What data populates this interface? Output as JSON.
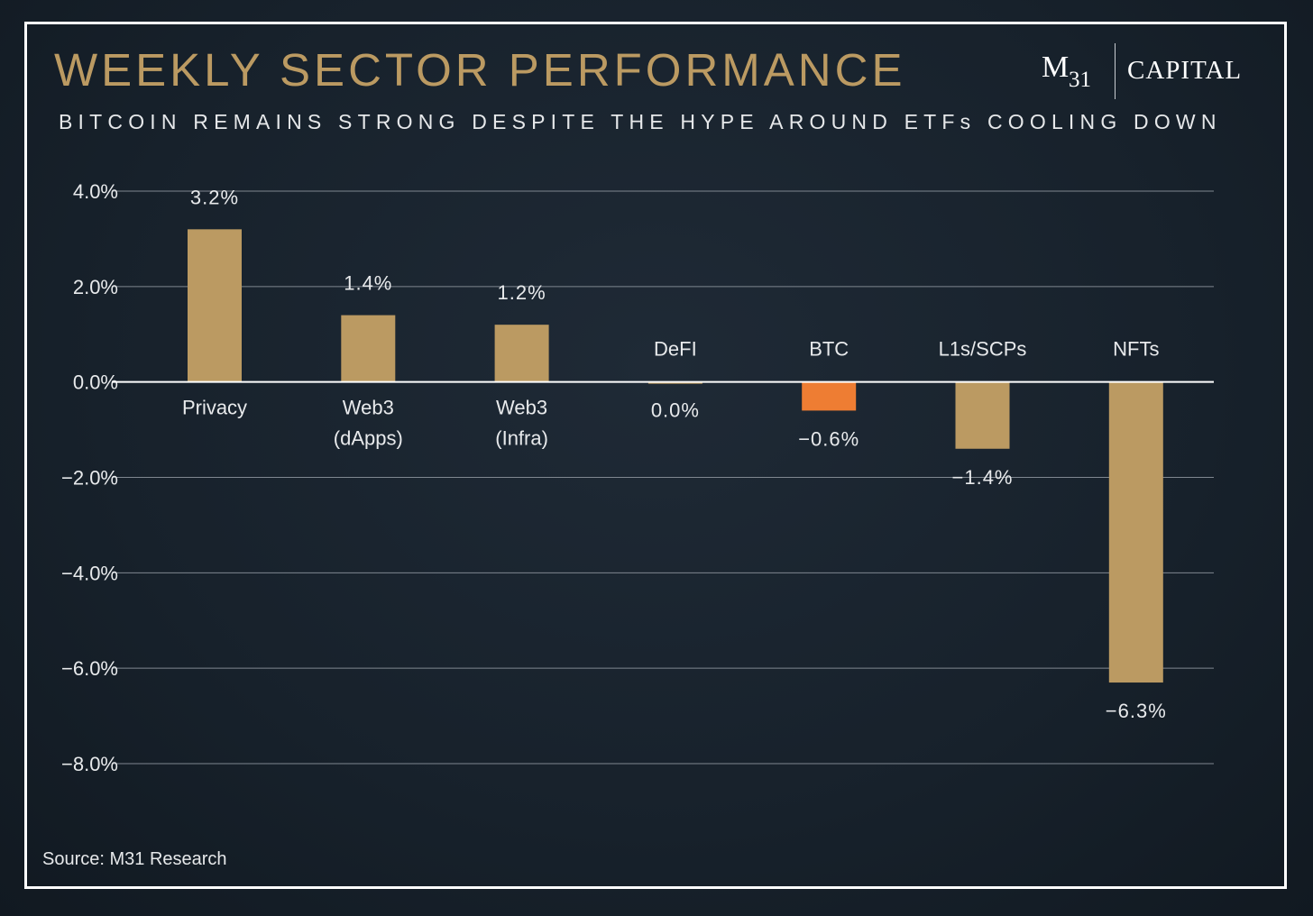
{
  "title": "WEEKLY SECTOR PERFORMANCE",
  "subtitle": "BITCOIN REMAINS STRONG DESPITE THE HYPE AROUND ETFs COOLING DOWN",
  "logo": {
    "m": "M",
    "sub": "31",
    "name": "CAPITAL"
  },
  "source": "Source: M31 Research",
  "colors": {
    "background": "#17212b",
    "title": "#bb9a62",
    "bar": "#bb9a62",
    "highlight_bar": "#ee7d33",
    "text": "#e8eaec",
    "gridline": "#7f8790",
    "zero_line": "#ffffff"
  },
  "chart_data": {
    "type": "bar",
    "categories": [
      [
        "Privacy"
      ],
      [
        "Web3",
        "(dApps)"
      ],
      [
        "Web3",
        "(Infra)"
      ],
      [
        "DeFI"
      ],
      [
        "BTC"
      ],
      [
        "L1s/SCPs"
      ],
      [
        "NFTs"
      ]
    ],
    "values": [
      3.2,
      1.4,
      1.2,
      0.0,
      -0.6,
      -1.4,
      -6.3
    ],
    "data_labels": [
      "3.2%",
      "1.4%",
      "1.2%",
      "0.0%",
      "−0.6%",
      "−1.4%",
      "−6.3%"
    ],
    "highlight_category": "BTC",
    "yticks": [
      4,
      2,
      0,
      -2,
      -4,
      -6,
      -8
    ],
    "ytick_labels": [
      "4.0%",
      "2.0%",
      "0.0%",
      "−2.0%",
      "−4.0%",
      "−6.0%",
      "−8.0%"
    ],
    "ylim": [
      -8,
      4
    ],
    "grid": true,
    "legend": "none",
    "xlabel": "",
    "ylabel": ""
  }
}
